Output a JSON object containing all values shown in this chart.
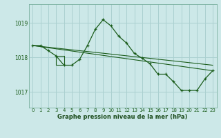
{
  "title": "Graphe pression niveau de la mer (hPa)",
  "background_color": "#cce8e8",
  "grid_color": "#aad0d0",
  "line_color": "#1a5c1a",
  "x_ticks": [
    0,
    1,
    2,
    3,
    4,
    5,
    6,
    7,
    8,
    9,
    10,
    11,
    12,
    13,
    14,
    15,
    16,
    17,
    18,
    19,
    20,
    21,
    22,
    23
  ],
  "y_ticks": [
    1017,
    1018,
    1019
  ],
  "ylim": [
    1016.55,
    1019.55
  ],
  "xlim": [
    -0.5,
    23.5
  ],
  "series1_x": [
    0,
    1,
    2,
    3,
    4,
    5,
    6,
    7,
    8,
    9,
    10,
    11,
    12,
    13,
    14,
    15,
    16,
    17,
    18,
    19,
    20,
    21,
    22,
    23
  ],
  "series1_y": [
    1018.35,
    1018.35,
    1018.2,
    1018.05,
    1017.78,
    1017.78,
    1017.95,
    1018.35,
    1018.82,
    1019.1,
    1018.92,
    1018.62,
    1018.42,
    1018.12,
    1017.98,
    1017.82,
    1017.52,
    1017.52,
    1017.3,
    1017.05,
    1017.05,
    1017.05,
    1017.38,
    1017.62
  ],
  "trend1_x": [
    0,
    23
  ],
  "trend1_y": [
    1018.35,
    1017.78
  ],
  "trend2_x": [
    0,
    23
  ],
  "trend2_y": [
    1018.35,
    1017.62
  ],
  "triangle_x": [
    3,
    4,
    4,
    3,
    3
  ],
  "triangle_y": [
    1018.05,
    1018.05,
    1017.78,
    1017.78,
    1018.05
  ]
}
